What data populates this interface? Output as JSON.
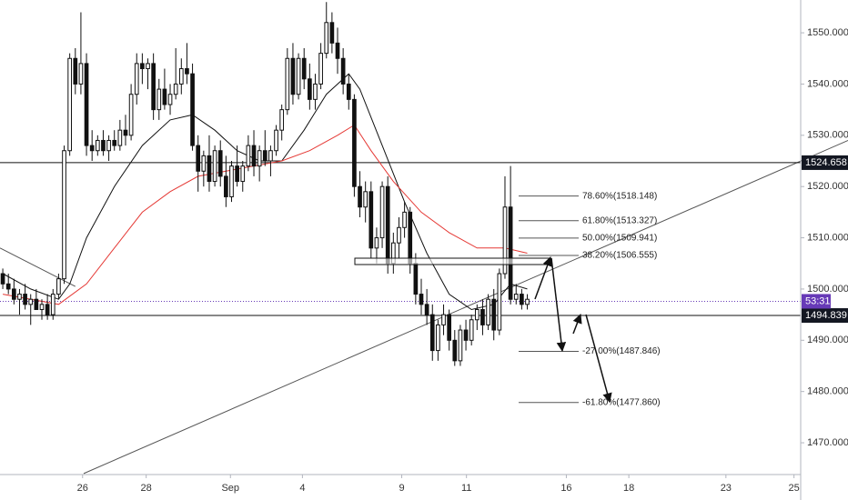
{
  "chart_data": {
    "type": "candlestick",
    "ohlc": [
      [
        1503,
        1504,
        1500,
        1501
      ],
      [
        1501,
        1503,
        1499,
        1500
      ],
      [
        1500,
        1502,
        1497,
        1498
      ],
      [
        1498,
        1500,
        1495,
        1499
      ],
      [
        1499,
        1501,
        1496,
        1497
      ],
      [
        1497,
        1499,
        1493,
        1498
      ],
      [
        1498,
        1500,
        1496,
        1496
      ],
      [
        1496,
        1498,
        1494,
        1497
      ],
      [
        1497,
        1499,
        1494,
        1495
      ],
      [
        1495,
        1500,
        1494,
        1499
      ],
      [
        1499,
        1503,
        1498,
        1502
      ],
      [
        1502,
        1528,
        1501,
        1527
      ],
      [
        1527,
        1546,
        1526,
        1545
      ],
      [
        1545,
        1547,
        1538,
        1540
      ],
      [
        1540,
        1554,
        1538,
        1544
      ],
      [
        1544,
        1546,
        1526,
        1528
      ],
      [
        1528,
        1531,
        1525,
        1527
      ],
      [
        1527,
        1530,
        1526,
        1529
      ],
      [
        1529,
        1531,
        1526,
        1527
      ],
      [
        1527,
        1530,
        1525,
        1529
      ],
      [
        1529,
        1531,
        1527,
        1528
      ],
      [
        1528,
        1533,
        1527,
        1531
      ],
      [
        1531,
        1534,
        1528,
        1530
      ],
      [
        1530,
        1540,
        1529,
        1538
      ],
      [
        1538,
        1546,
        1536,
        1544
      ],
      [
        1544,
        1546,
        1540,
        1543
      ],
      [
        1543,
        1545,
        1539,
        1544
      ],
      [
        1544,
        1546,
        1533,
        1535
      ],
      [
        1535,
        1541,
        1533,
        1539
      ],
      [
        1539,
        1543,
        1535,
        1536
      ],
      [
        1536,
        1540,
        1534,
        1538
      ],
      [
        1538,
        1547,
        1537,
        1540
      ],
      [
        1540,
        1545,
        1538,
        1543
      ],
      [
        1543,
        1548,
        1540,
        1542
      ],
      [
        1542,
        1544,
        1527,
        1528
      ],
      [
        1528,
        1530,
        1519,
        1523
      ],
      [
        1523,
        1527,
        1520,
        1526
      ],
      [
        1526,
        1530,
        1519,
        1521
      ],
      [
        1521,
        1528,
        1520,
        1527
      ],
      [
        1527,
        1529,
        1520,
        1522
      ],
      [
        1522,
        1526,
        1516,
        1518
      ],
      [
        1518,
        1525,
        1517,
        1524
      ],
      [
        1524,
        1528,
        1520,
        1521
      ],
      [
        1521,
        1525,
        1519,
        1524
      ],
      [
        1524,
        1530,
        1523,
        1528
      ],
      [
        1528,
        1531,
        1522,
        1524
      ],
      [
        1524,
        1528,
        1521,
        1527
      ],
      [
        1527,
        1531,
        1524,
        1525
      ],
      [
        1525,
        1528,
        1522,
        1527
      ],
      [
        1527,
        1532,
        1526,
        1531
      ],
      [
        1531,
        1536,
        1529,
        1535
      ],
      [
        1535,
        1547,
        1534,
        1545
      ],
      [
        1545,
        1548,
        1536,
        1538
      ],
      [
        1538,
        1546,
        1537,
        1545
      ],
      [
        1545,
        1547,
        1539,
        1541
      ],
      [
        1541,
        1544,
        1535,
        1537
      ],
      [
        1537,
        1542,
        1535,
        1540
      ],
      [
        1540,
        1548,
        1539,
        1546
      ],
      [
        1546,
        1556,
        1545,
        1552
      ],
      [
        1552,
        1554,
        1546,
        1548
      ],
      [
        1548,
        1551,
        1542,
        1545
      ],
      [
        1545,
        1547,
        1538,
        1540
      ],
      [
        1540,
        1542,
        1535,
        1537
      ],
      [
        1537,
        1538,
        1518,
        1520
      ],
      [
        1520,
        1523,
        1514,
        1516
      ],
      [
        1516,
        1521,
        1513,
        1519
      ],
      [
        1519,
        1521,
        1506,
        1508
      ],
      [
        1508,
        1512,
        1505,
        1510
      ],
      [
        1510,
        1521,
        1508,
        1520
      ],
      [
        1520,
        1522,
        1503,
        1505
      ],
      [
        1505,
        1511,
        1503,
        1509
      ],
      [
        1509,
        1514,
        1506,
        1512
      ],
      [
        1512,
        1517,
        1510,
        1515
      ],
      [
        1515,
        1516,
        1503,
        1505
      ],
      [
        1505,
        1507,
        1497,
        1499
      ],
      [
        1499,
        1502,
        1495,
        1497
      ],
      [
        1497,
        1500,
        1493,
        1495
      ],
      [
        1495,
        1497,
        1486,
        1488
      ],
      [
        1488,
        1494,
        1486,
        1493
      ],
      [
        1493,
        1497,
        1491,
        1495
      ],
      [
        1495,
        1496,
        1488,
        1490
      ],
      [
        1490,
        1492,
        1485,
        1486
      ],
      [
        1486,
        1493,
        1485,
        1492
      ],
      [
        1492,
        1494,
        1488,
        1490
      ],
      [
        1490,
        1495,
        1489,
        1494
      ],
      [
        1494,
        1497,
        1492,
        1496
      ],
      [
        1496,
        1498,
        1491,
        1493
      ],
      [
        1493,
        1499,
        1492,
        1498
      ],
      [
        1498,
        1500,
        1490,
        1492
      ],
      [
        1492,
        1504,
        1491,
        1503
      ],
      [
        1503,
        1522,
        1502,
        1516
      ],
      [
        1516,
        1524,
        1497,
        1498
      ],
      [
        1498,
        1501,
        1497,
        1499
      ],
      [
        1499,
        1500,
        1496,
        1497
      ],
      [
        1497,
        1499,
        1496,
        1498
      ]
    ],
    "series": [
      {
        "color": "#111111",
        "x": [
          0,
          5,
          10,
          12,
          15,
          20,
          25,
          30,
          34,
          38,
          42,
          46,
          50,
          54,
          58,
          62,
          64,
          68,
          72,
          76,
          80,
          84,
          88,
          91,
          94
        ],
        "values": [
          1503,
          1500,
          1498,
          1501,
          1510,
          1520,
          1528,
          1533,
          1534,
          1531,
          1527,
          1525,
          1525,
          1531,
          1538,
          1542,
          1539,
          1528,
          1517,
          1507,
          1499,
          1496,
          1497,
          1501,
          1500
        ]
      },
      {
        "color": "#e53935",
        "x": [
          0,
          10,
          15,
          20,
          25,
          30,
          35,
          40,
          45,
          50,
          55,
          60,
          63,
          66,
          70,
          75,
          80,
          85,
          90,
          94
        ],
        "values": [
          1499,
          1497,
          1501,
          1508,
          1515,
          1519,
          1522,
          1523,
          1524,
          1525,
          1527,
          1530,
          1532,
          1527,
          1521,
          1515,
          1511,
          1508,
          1508,
          1507
        ]
      }
    ],
    "trendlines": [
      {
        "x": [
          14.5,
          151.5
        ],
        "y": [
          1464,
          1529
        ]
      },
      {
        "x": [
          -0.5,
          13
        ],
        "y": [
          1508,
          1500.5
        ]
      }
    ],
    "levels": [
      {
        "value": 1524.658,
        "label": "1524.658"
      },
      {
        "value": 1494.839,
        "label": "1494.839"
      }
    ],
    "current_price": 1497.6,
    "countdown": "53:31",
    "fib": [
      {
        "value": 1518.148,
        "label": "78.60%(1518.148)"
      },
      {
        "value": 1513.327,
        "label": "61.80%(1513.327)"
      },
      {
        "value": 1509.941,
        "label": "50.00%(1509.941)"
      },
      {
        "value": 1506.555,
        "label": "38.20%(1506.555)"
      },
      {
        "value": 1487.846,
        "label": "-27.00%(1487.846)"
      },
      {
        "value": 1477.86,
        "label": "-61.80%(1477.860)"
      }
    ],
    "xlim": [
      -0.5,
      143
    ],
    "xticks": [
      {
        "value": 14.3,
        "label": "26"
      },
      {
        "value": 25.7,
        "label": "28"
      },
      {
        "value": 40.8,
        "label": "Sep"
      },
      {
        "value": 53.7,
        "label": "4"
      },
      {
        "value": 71.5,
        "label": "9"
      },
      {
        "value": 83.1,
        "label": "11"
      },
      {
        "value": 101,
        "label": "16"
      },
      {
        "value": 112.2,
        "label": "18"
      },
      {
        "value": 129.6,
        "label": "23"
      },
      {
        "value": 141.8,
        "label": "25"
      }
    ],
    "ylim": [
      1463.8,
      1556.4
    ],
    "yticks": [
      {
        "value": 1550,
        "label": "1550.000"
      },
      {
        "value": 1540,
        "label": "1540.000"
      },
      {
        "value": 1530,
        "label": "1530.000"
      },
      {
        "value": 1520,
        "label": "1520.000"
      },
      {
        "value": 1510,
        "label": "1510.000"
      },
      {
        "value": 1500,
        "label": "1500.000"
      },
      {
        "value": 1490,
        "label": "1490.000"
      },
      {
        "value": 1480,
        "label": "1480.000"
      },
      {
        "value": 1470,
        "label": "1470.000"
      }
    ]
  }
}
